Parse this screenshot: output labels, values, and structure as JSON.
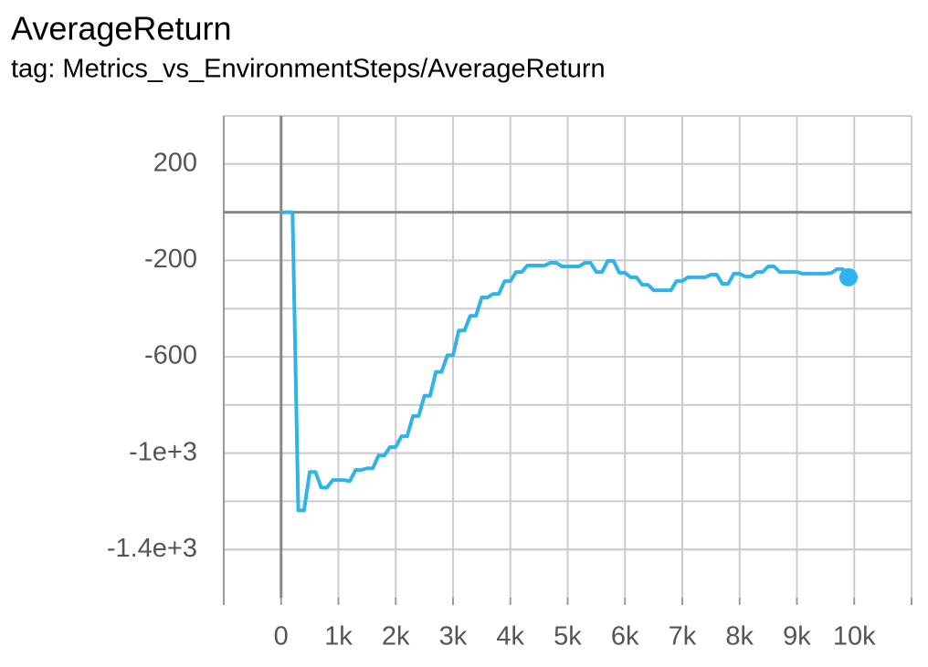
{
  "chart_data": {
    "type": "line",
    "title": "AverageReturn",
    "subtitle": "tag: Metrics_vs_EnvironmentSteps/AverageReturn",
    "xlim": [
      -1000,
      11000
    ],
    "ylim": [
      -1600,
      400
    ],
    "xticks": [
      0,
      {
        "value": 1000,
        "label": "1k"
      },
      {
        "value": 2000,
        "label": "2k"
      },
      {
        "value": 3000,
        "label": "3k"
      },
      {
        "value": 4000,
        "label": "4k"
      },
      {
        "value": 5000,
        "label": "5k"
      },
      {
        "value": 6000,
        "label": "6k"
      },
      {
        "value": 7000,
        "label": "7k"
      },
      {
        "value": 8000,
        "label": "8k"
      },
      {
        "value": 9000,
        "label": "9k"
      },
      {
        "value": 10000,
        "label": "10k"
      }
    ],
    "yticks": [
      200,
      -200,
      -600,
      {
        "value": -1000,
        "label": "-1e+3"
      },
      {
        "value": -1400,
        "label": "-1.4e+3"
      }
    ],
    "grid": true,
    "x": [
      0,
      100,
      200,
      300,
      400,
      500,
      600,
      700,
      800,
      900,
      1000,
      1100,
      1200,
      1300,
      1400,
      1500,
      1600,
      1700,
      1800,
      1900,
      2000,
      2100,
      2200,
      2300,
      2400,
      2500,
      2600,
      2700,
      2800,
      2900,
      3000,
      3100,
      3200,
      3300,
      3400,
      3500,
      3600,
      3700,
      3800,
      3900,
      4000,
      4100,
      4200,
      4300,
      4400,
      4500,
      4600,
      4700,
      4800,
      4900,
      5000,
      5100,
      5200,
      5300,
      5400,
      5500,
      5600,
      5700,
      5800,
      5900,
      6000,
      6100,
      6200,
      6300,
      6400,
      6500,
      6600,
      6700,
      6800,
      6900,
      7000,
      7100,
      7200,
      7300,
      7400,
      7500,
      7600,
      7700,
      7800,
      7900,
      8000,
      8100,
      8200,
      8300,
      8400,
      8500,
      8600,
      8700,
      8800,
      8900,
      9000,
      9100,
      9200,
      9300,
      9400,
      9500,
      9600,
      9700,
      9800,
      9900
    ],
    "series": [
      {
        "color": "#2fb3ea",
        "values": [
          0,
          0,
          0,
          -1238,
          -1238,
          -1078,
          -1078,
          -1143,
          -1143,
          -1112,
          -1112,
          -1112,
          -1116,
          -1070,
          -1070,
          -1063,
          -1063,
          -1010,
          -1010,
          -975,
          -975,
          -930,
          -930,
          -846,
          -846,
          -762,
          -762,
          -663,
          -663,
          -594,
          -594,
          -491,
          -491,
          -430,
          -430,
          -354,
          -354,
          -339,
          -339,
          -286,
          -286,
          -248,
          -248,
          -221,
          -221,
          -221,
          -221,
          -210,
          -210,
          -225,
          -225,
          -225,
          -225,
          -210,
          -210,
          -248,
          -248,
          -202,
          -202,
          -251,
          -251,
          -270,
          -270,
          -301,
          -301,
          -324,
          -324,
          -324,
          -324,
          -286,
          -286,
          -270,
          -270,
          -270,
          -270,
          -259,
          -259,
          -297,
          -297,
          -255,
          -255,
          -267,
          -267,
          -248,
          -248,
          -225,
          -225,
          -248,
          -248,
          -248,
          -248,
          -255,
          -255,
          -255,
          -255,
          -255,
          -252,
          -236,
          -236,
          -270
        ]
      }
    ]
  }
}
